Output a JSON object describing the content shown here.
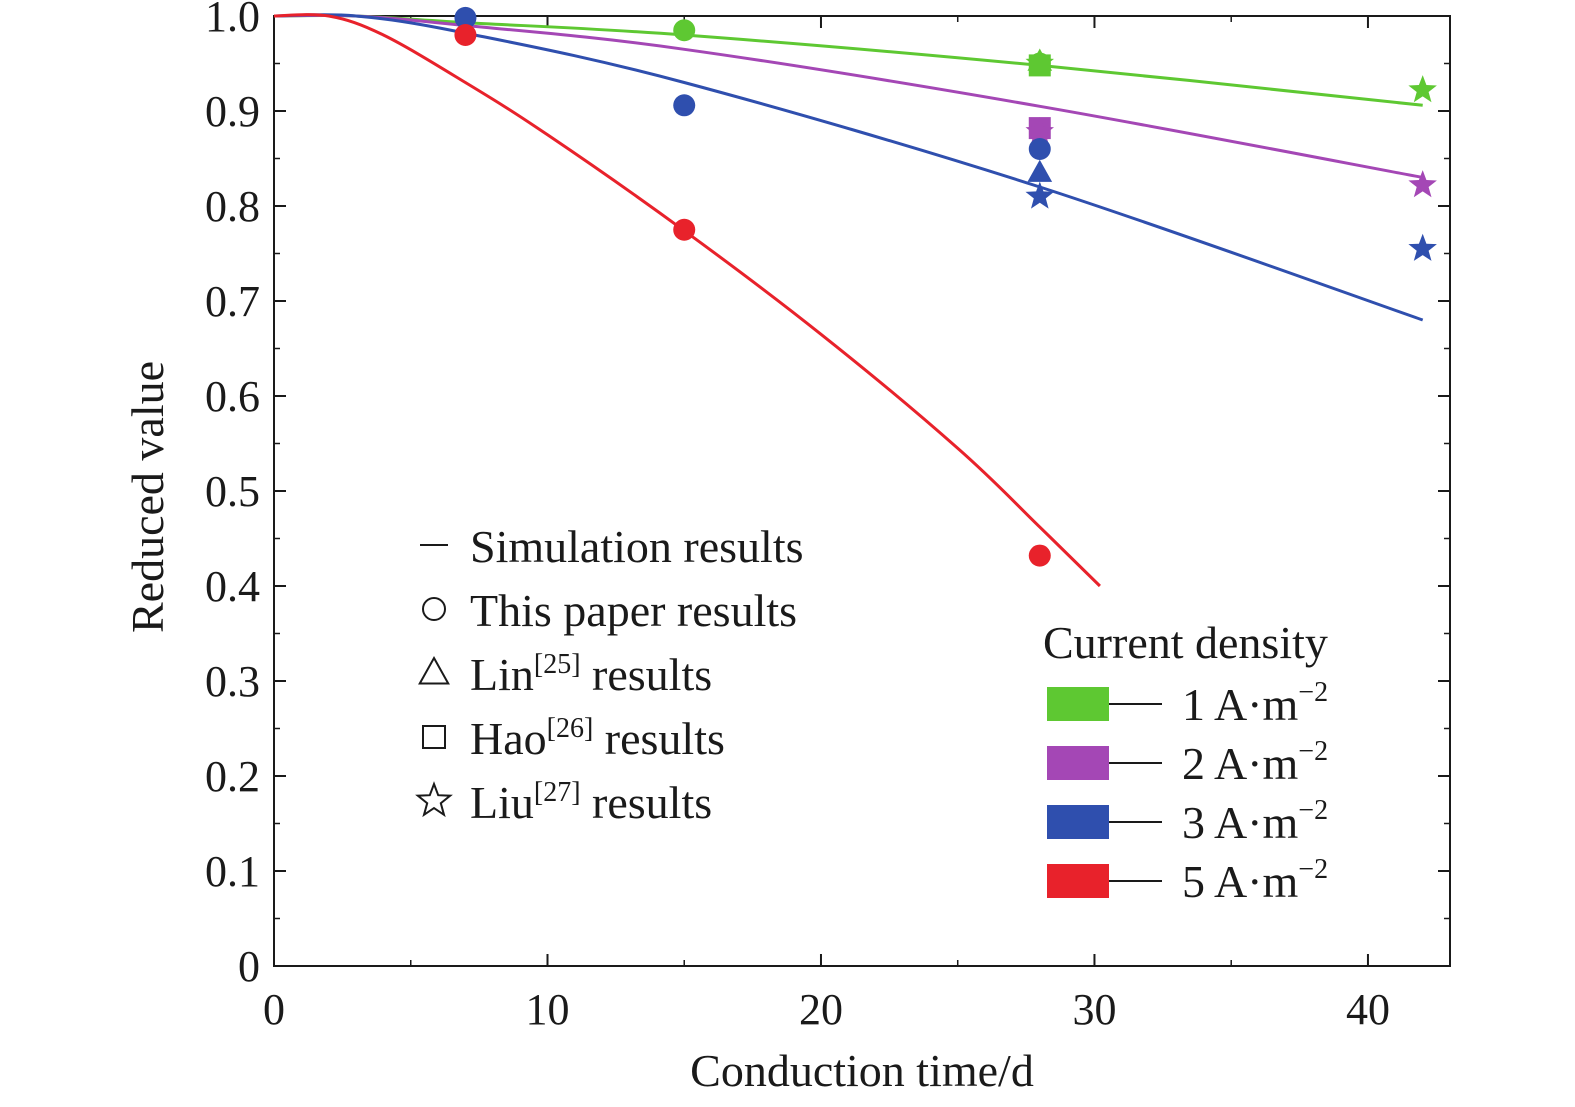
{
  "chart_data": {
    "type": "line",
    "xlabel": "Conduction time/d",
    "ylabel": "Reduced value",
    "xlim": [
      0,
      43
    ],
    "ylim": [
      0,
      1.0
    ],
    "xticks": [
      "0",
      "10",
      "20",
      "30",
      "40"
    ],
    "yticks": [
      "0",
      "0.1",
      "0.2",
      "0.3",
      "0.4",
      "0.5",
      "0.6",
      "0.7",
      "0.8",
      "0.9",
      "1.0"
    ],
    "grid": false,
    "marker_legend": {
      "placement": "center-left",
      "items": [
        {
          "symbol": "line",
          "label": "Simulation results",
          "name": "",
          "ref": ""
        },
        {
          "symbol": "circle",
          "label": "This paper results",
          "name": "",
          "ref": ""
        },
        {
          "symbol": "triangle",
          "label": "",
          "name": "Lin",
          "ref": "[25]",
          "suffix": " results"
        },
        {
          "symbol": "square",
          "label": "",
          "name": "Hao",
          "ref": "[26]",
          "suffix": " results"
        },
        {
          "symbol": "star",
          "label": "",
          "name": "Liu",
          "ref": "[27]",
          "suffix": " results"
        }
      ]
    },
    "color_legend": {
      "title": "Current density",
      "placement": "bottom-right",
      "unit": "A·m",
      "exponent": "−2"
    },
    "series": [
      {
        "name": "1",
        "color": "#5ec832",
        "simulation": {
          "x": [
            0,
            3,
            7,
            15,
            28,
            42
          ],
          "y": [
            1.0,
            1.0,
            0.993,
            0.98,
            0.948,
            0.906
          ]
        },
        "points": [
          {
            "symbol": "circle",
            "x": 15,
            "y": 0.985
          },
          {
            "symbol": "circle",
            "x": 28,
            "y": 0.95
          },
          {
            "symbol": "triangle",
            "x": 28,
            "y": 0.952
          },
          {
            "symbol": "square",
            "x": 28,
            "y": 0.948
          },
          {
            "symbol": "star",
            "x": 28,
            "y": 0.95
          },
          {
            "symbol": "star",
            "x": 42,
            "y": 0.922
          }
        ]
      },
      {
        "name": "2",
        "color": "#a447b5",
        "simulation": {
          "x": [
            0,
            3,
            7,
            15,
            28,
            42
          ],
          "y": [
            1.0,
            1.0,
            0.99,
            0.965,
            0.905,
            0.83
          ]
        },
        "points": [
          {
            "symbol": "square",
            "x": 28,
            "y": 0.882
          },
          {
            "symbol": "star",
            "x": 28,
            "y": 0.878
          },
          {
            "symbol": "star",
            "x": 42,
            "y": 0.822
          }
        ]
      },
      {
        "name": "3",
        "color": "#2f4fae",
        "simulation": {
          "x": [
            0,
            3,
            7,
            15,
            28,
            42
          ],
          "y": [
            1.0,
            1.0,
            0.982,
            0.93,
            0.82,
            0.68
          ]
        },
        "points": [
          {
            "symbol": "circle",
            "x": 7,
            "y": 0.998
          },
          {
            "symbol": "circle",
            "x": 15,
            "y": 0.906
          },
          {
            "symbol": "circle",
            "x": 28,
            "y": 0.86
          },
          {
            "symbol": "triangle",
            "x": 28,
            "y": 0.835
          },
          {
            "symbol": "star",
            "x": 28,
            "y": 0.81
          },
          {
            "symbol": "star",
            "x": 42,
            "y": 0.755
          }
        ]
      },
      {
        "name": "5",
        "color": "#e8222b",
        "simulation": {
          "x": [
            0,
            2,
            4,
            7,
            10,
            15,
            20,
            25,
            28,
            30.2
          ],
          "y": [
            1.0,
            1.0,
            0.98,
            0.93,
            0.875,
            0.774,
            0.665,
            0.545,
            0.462,
            0.4
          ]
        },
        "points": [
          {
            "symbol": "circle",
            "x": 7,
            "y": 0.98
          },
          {
            "symbol": "circle",
            "x": 15,
            "y": 0.775
          },
          {
            "symbol": "circle",
            "x": 28,
            "y": 0.432
          }
        ]
      }
    ]
  }
}
